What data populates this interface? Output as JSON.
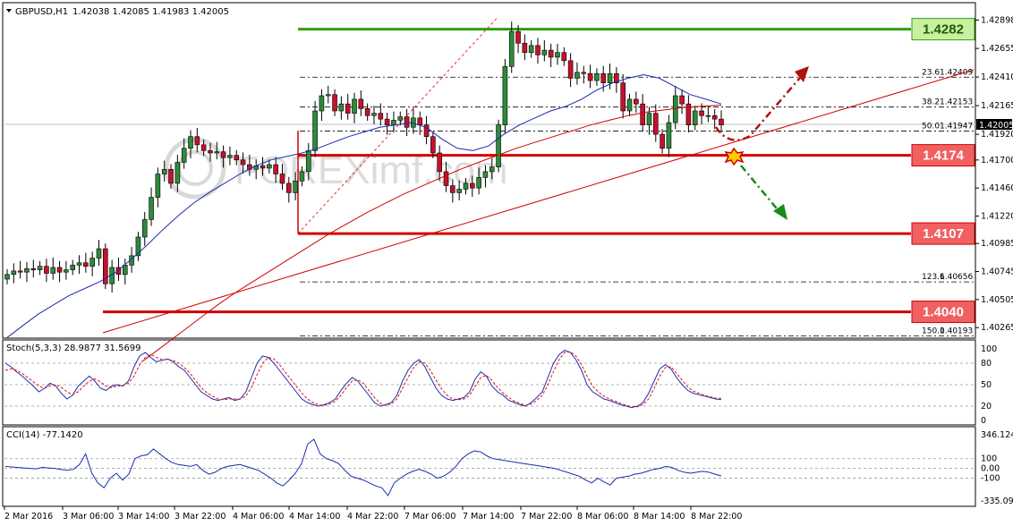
{
  "header": {
    "symbol_label": "GBPUSD,H1",
    "ohlc": "1.42038 1.42085 1.41983 1.42005"
  },
  "watermark": "FOREXimf.com",
  "chart_data": [
    {
      "type": "candlestick",
      "title": "GBPUSD,H1",
      "ylim": [
        1.4019,
        1.4297
      ],
      "y_ticks": [
        "1.42898",
        "1.42655",
        "1.42410",
        "1.42165",
        "1.41920",
        "1.41700",
        "1.41460",
        "1.41220",
        "1.40985",
        "1.40745",
        "1.40505",
        "1.40265"
      ],
      "current_price": "1.42005",
      "x_ticks": [
        "2 Mar 2016",
        "3 Mar 06:00",
        "3 Mar 14:00",
        "3 Mar 22:00",
        "4 Mar 06:00",
        "4 Mar 14:00",
        "4 Mar 22:00",
        "7 Mar 06:00",
        "7 Mar 14:00",
        "7 Mar 22:00",
        "8 Mar 06:00",
        "8 Mar 14:00",
        "8 Mar 22:00"
      ],
      "candle_closes": [
        1.4072,
        1.4075,
        1.4074,
        1.4077,
        1.4076,
        1.4079,
        1.4073,
        1.4078,
        1.4074,
        1.4076,
        1.408,
        1.4082,
        1.4079,
        1.4086,
        1.4094,
        1.4064,
        1.4078,
        1.4072,
        1.408,
        1.4088,
        1.4104,
        1.4119,
        1.4138,
        1.4158,
        1.4162,
        1.415,
        1.4168,
        1.418,
        1.419,
        1.4183,
        1.4178,
        1.4176,
        1.4177,
        1.4172,
        1.4174,
        1.417,
        1.4166,
        1.4162,
        1.4165,
        1.4163,
        1.4166,
        1.4158,
        1.415,
        1.4142,
        1.4152,
        1.416,
        1.4178,
        1.4212,
        1.4225,
        1.4226,
        1.4212,
        1.4218,
        1.421,
        1.4222,
        1.4214,
        1.4208,
        1.421,
        1.4205,
        1.42,
        1.4204,
        1.4207,
        1.4198,
        1.4206,
        1.42,
        1.419,
        1.4176,
        1.416,
        1.4148,
        1.4142,
        1.4145,
        1.415,
        1.4146,
        1.4155,
        1.416,
        1.4164,
        1.42,
        1.425,
        1.428,
        1.427,
        1.4262,
        1.4268,
        1.426,
        1.4264,
        1.4258,
        1.4262,
        1.4255,
        1.424,
        1.4245,
        1.4244,
        1.4238,
        1.4244,
        1.4236,
        1.4244,
        1.4236,
        1.4212,
        1.4222,
        1.4218,
        1.42,
        1.421,
        1.4192,
        1.418,
        1.4202,
        1.4225,
        1.4218,
        1.42,
        1.4212,
        1.4208,
        1.4208,
        1.4205,
        1.42
      ],
      "ma_blue": [
        1.4018,
        1.4028,
        1.4038,
        1.4046,
        1.4054,
        1.406,
        1.4066,
        1.4074,
        1.4085,
        1.4097,
        1.411,
        1.4122,
        1.4133,
        1.4142,
        1.415,
        1.4158,
        1.4165,
        1.417,
        1.4173,
        1.4176,
        1.418,
        1.4185,
        1.419,
        1.4194,
        1.4198,
        1.42,
        1.4202,
        1.4198,
        1.4188,
        1.418,
        1.4178,
        1.4182,
        1.4192,
        1.42,
        1.4206,
        1.4212,
        1.4216,
        1.4222,
        1.423,
        1.4236,
        1.424,
        1.4243,
        1.424,
        1.4233,
        1.4226,
        1.4222,
        1.4218
      ],
      "ma_red": [
        1.3998,
        1.401,
        1.4022,
        1.4034,
        1.4046,
        1.4057,
        1.4067,
        1.4077,
        1.4087,
        1.4097,
        1.4107,
        1.4116,
        1.4125,
        1.4133,
        1.4141,
        1.4148,
        1.4155,
        1.4162,
        1.4168,
        1.4174,
        1.418,
        1.4185,
        1.419,
        1.4195,
        1.42,
        1.4204,
        1.4208,
        1.4211,
        1.4213,
        1.4215,
        1.4216,
        1.4217
      ],
      "levels": [
        {
          "price": "1.4282",
          "value": 1.4282,
          "color": "#2e9e12",
          "fill": "#c8f0a0"
        },
        {
          "price": "1.4174",
          "value": 1.4174,
          "color": "#d20000",
          "fill": "#f06060"
        },
        {
          "price": "1.4107",
          "value": 1.4107,
          "color": "#d20000",
          "fill": "#f06060"
        },
        {
          "price": "1.4040",
          "value": 1.404,
          "color": "#d20000",
          "fill": "#f06060"
        }
      ],
      "fib_levels": [
        {
          "ratio": "23.6",
          "price": "1.42409",
          "value": 1.42409
        },
        {
          "ratio": "38.2",
          "price": "1.42153",
          "value": 1.42153
        },
        {
          "ratio": "50.0",
          "price": "1.41947",
          "value": 1.41947
        },
        {
          "ratio": "123.6",
          "price": "1.40656",
          "value": 1.40656
        },
        {
          "ratio": "150.0",
          "price": "1.40193",
          "value": 1.40193
        }
      ]
    },
    {
      "type": "line",
      "title": "Stoch(5,3,3) 28.9877 31.5699",
      "ylim": [
        0,
        100
      ],
      "y_ticks": [
        "100",
        "80",
        "50",
        "20",
        "0"
      ],
      "main": [
        80,
        75,
        68,
        62,
        55,
        48,
        40,
        45,
        52,
        48,
        38,
        30,
        35,
        48,
        55,
        62,
        55,
        45,
        42,
        48,
        50,
        48,
        55,
        75,
        90,
        95,
        88,
        82,
        84,
        86,
        82,
        75,
        70,
        60,
        50,
        40,
        35,
        30,
        28,
        30,
        32,
        28,
        30,
        40,
        60,
        80,
        90,
        88,
        80,
        70,
        60,
        50,
        40,
        30,
        25,
        22,
        20,
        22,
        25,
        30,
        42,
        52,
        60,
        55,
        45,
        35,
        25,
        20,
        22,
        25,
        35,
        55,
        70,
        80,
        85,
        75,
        60,
        45,
        35,
        30,
        28,
        30,
        32,
        40,
        58,
        68,
        62,
        48,
        40,
        35,
        28,
        25,
        22,
        20,
        25,
        32,
        40,
        60,
        80,
        92,
        98,
        95,
        85,
        70,
        50,
        40,
        35,
        30,
        28,
        25,
        22,
        20,
        18,
        20,
        25,
        38,
        55,
        72,
        78,
        72,
        60,
        50,
        42,
        38,
        36,
        34,
        32,
        30,
        29
      ],
      "signal": [
        70,
        72,
        70,
        66,
        60,
        54,
        48,
        45,
        48,
        50,
        46,
        40,
        36,
        40,
        48,
        55,
        58,
        54,
        48,
        46,
        48,
        49,
        52,
        62,
        78,
        88,
        92,
        88,
        85,
        85,
        84,
        80,
        74,
        66,
        56,
        46,
        39,
        34,
        30,
        29,
        30,
        30,
        30,
        34,
        46,
        64,
        80,
        88,
        86,
        78,
        68,
        58,
        48,
        38,
        30,
        25,
        22,
        21,
        23,
        27,
        35,
        46,
        55,
        57,
        52,
        42,
        32,
        24,
        21,
        23,
        30,
        45,
        60,
        74,
        82,
        80,
        70,
        56,
        44,
        35,
        30,
        29,
        30,
        35,
        48,
        60,
        63,
        56,
        46,
        38,
        32,
        27,
        24,
        21,
        23,
        28,
        35,
        50,
        68,
        85,
        95,
        96,
        90,
        78,
        62,
        48,
        40,
        34,
        30,
        27,
        24,
        21,
        19,
        19,
        22,
        30,
        45,
        62,
        74,
        75,
        66,
        56,
        47,
        41,
        38,
        35,
        33,
        31,
        31
      ]
    },
    {
      "type": "line",
      "title": "CCI(14) -77.1420",
      "y_ticks": [
        "346.1244",
        "100",
        "0.00",
        "-100",
        "-335.0947"
      ],
      "ylim": [
        -335.0947,
        346.1244
      ],
      "values": [
        20,
        15,
        10,
        5,
        0,
        -5,
        10,
        5,
        0,
        -10,
        -20,
        -10,
        40,
        150,
        -50,
        -150,
        -200,
        -100,
        -50,
        -120,
        -60,
        100,
        130,
        140,
        200,
        150,
        100,
        60,
        40,
        30,
        20,
        40,
        -20,
        -60,
        -40,
        0,
        20,
        30,
        40,
        20,
        0,
        -20,
        -60,
        -100,
        -150,
        -180,
        -120,
        -50,
        50,
        250,
        300,
        150,
        100,
        80,
        50,
        -20,
        -80,
        -100,
        -120,
        -150,
        -180,
        -200,
        -280,
        -150,
        -100,
        -60,
        -30,
        -10,
        -30,
        -60,
        -100,
        -80,
        -40,
        20,
        100,
        150,
        180,
        170,
        130,
        100,
        90,
        80,
        70,
        60,
        50,
        40,
        30,
        20,
        10,
        0,
        -20,
        -40,
        -60,
        -80,
        -120,
        -150,
        -100,
        -140,
        -170,
        -100,
        -90,
        -80,
        -60,
        -50,
        -30,
        -10,
        0,
        20,
        10,
        -20,
        -40,
        -50,
        -40,
        -30,
        -40,
        -60,
        -77
      ]
    }
  ]
}
